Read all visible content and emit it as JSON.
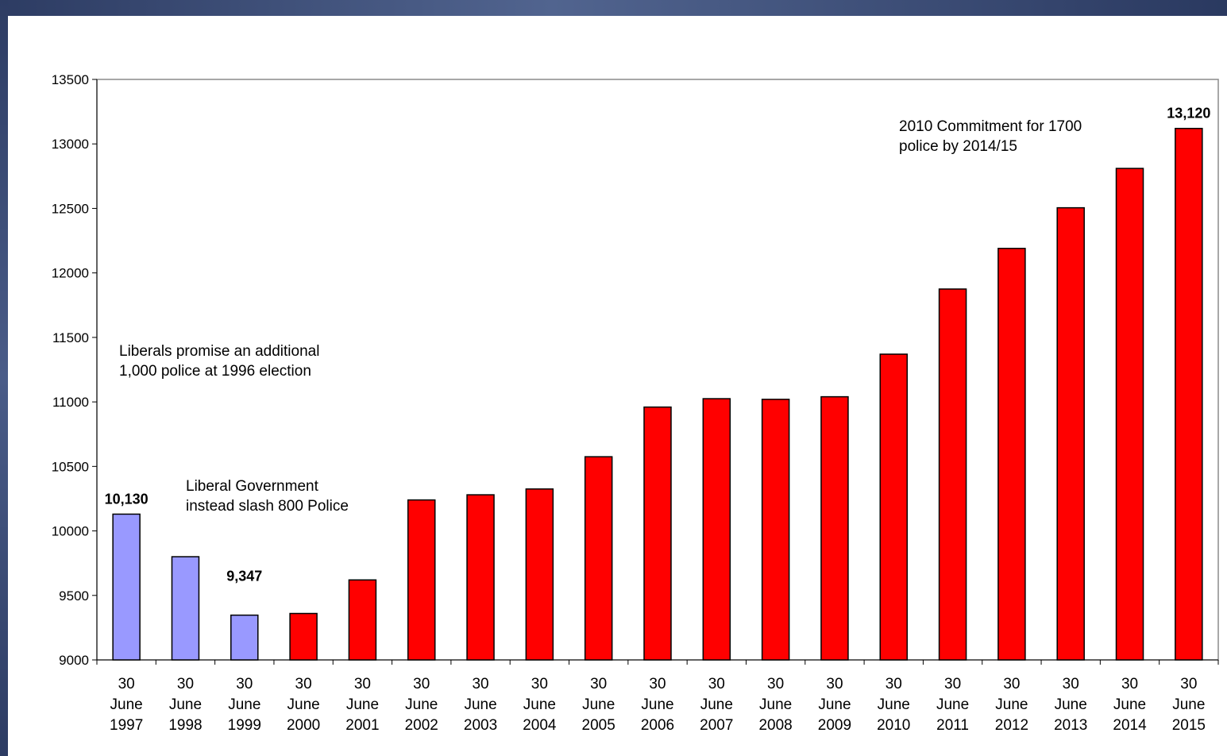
{
  "chart_data": {
    "type": "bar",
    "title": "",
    "xlabel": "",
    "ylabel": "",
    "ylim": [
      9000,
      13500
    ],
    "yticks": [
      9000,
      9500,
      10000,
      10500,
      11000,
      11500,
      12000,
      12500,
      13000,
      13500
    ],
    "categories": [
      "30 June 1997",
      "30 June 1998",
      "30 June 1999",
      "30 June 2000",
      "30 June 2001",
      "30 June 2002",
      "30 June 2003",
      "30 June 2004",
      "30 June 2005",
      "30 June 2006",
      "30 June 2007",
      "30 June 2008",
      "30 June 2009",
      "30 June 2010",
      "30 June 2011",
      "30 June 2012",
      "30 June 2013",
      "30 June 2014",
      "30 June 2015"
    ],
    "values": [
      10130,
      9800,
      9347,
      9360,
      9620,
      10240,
      10280,
      10325,
      10575,
      10960,
      11025,
      11020,
      11040,
      11370,
      11875,
      12190,
      12505,
      12810,
      13120
    ],
    "bar_colors": [
      "#9999ff",
      "#9999ff",
      "#9999ff",
      "#ff0000",
      "#ff0000",
      "#ff0000",
      "#ff0000",
      "#ff0000",
      "#ff0000",
      "#ff0000",
      "#ff0000",
      "#ff0000",
      "#ff0000",
      "#ff0000",
      "#ff0000",
      "#ff0000",
      "#ff0000",
      "#ff0000",
      "#ff0000"
    ],
    "data_labels": [
      {
        "index": 0,
        "text": "10,130"
      },
      {
        "index": 2,
        "text": "9,347"
      },
      {
        "index": 18,
        "text": "13,120"
      }
    ],
    "grid": false,
    "legend": "none"
  },
  "annotations": {
    "liberals_promise": "Liberals promise an additional\n1,000 police at 1996 election",
    "liberal_government": "Liberal Government\ninstead slash 800 Police",
    "commitment_2010": "2010 Commitment for 1700\npolice by 2014/15"
  }
}
